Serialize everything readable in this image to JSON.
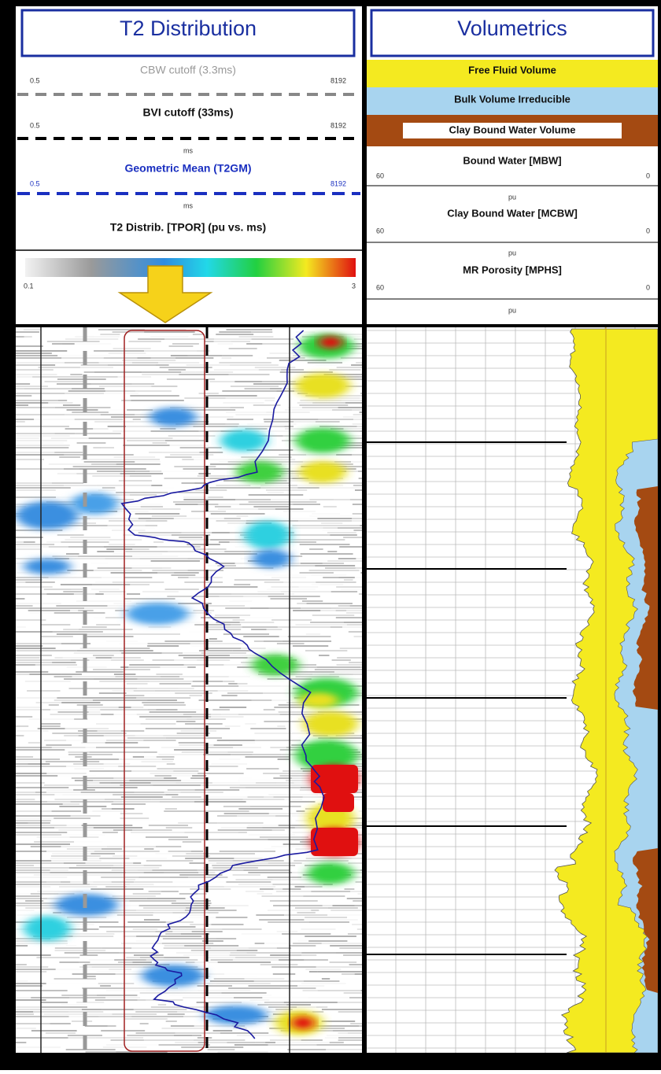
{
  "t2_panel": {
    "title": "T2 Distribution",
    "tracks": [
      {
        "label": "CBW cutoff (3.3ms)",
        "scale_min": "0.5",
        "scale_max": "8192"
      },
      {
        "label": "BVI cutoff (33ms)",
        "scale_min": "0.5",
        "scale_max": "8192"
      },
      {
        "unit": "ms",
        "label": "Geometric Mean (T2GM)",
        "scale_min": "0.5",
        "scale_max": "8192"
      },
      {
        "unit": "ms",
        "label": "T2 Distrib. [TPOR] (pu vs. ms)"
      }
    ],
    "colorbar": {
      "min": "0.1",
      "max": "3"
    }
  },
  "volumetrics_panel": {
    "title": "Volumetrics",
    "legend": [
      "Free Fluid Volume",
      "Bulk Volume Irreducible",
      "Clay Bound Water Volume"
    ],
    "tracks": [
      {
        "label": "Bound Water [MBW]",
        "scale_min": "60",
        "scale_max": "0",
        "unit": "pu"
      },
      {
        "label": "Clay Bound Water [MCBW]",
        "scale_min": "60",
        "scale_max": "0",
        "unit": "pu"
      },
      {
        "label": "MR Porosity [MPHS]",
        "scale_min": "60",
        "scale_max": "0",
        "unit": "pu"
      }
    ]
  }
}
